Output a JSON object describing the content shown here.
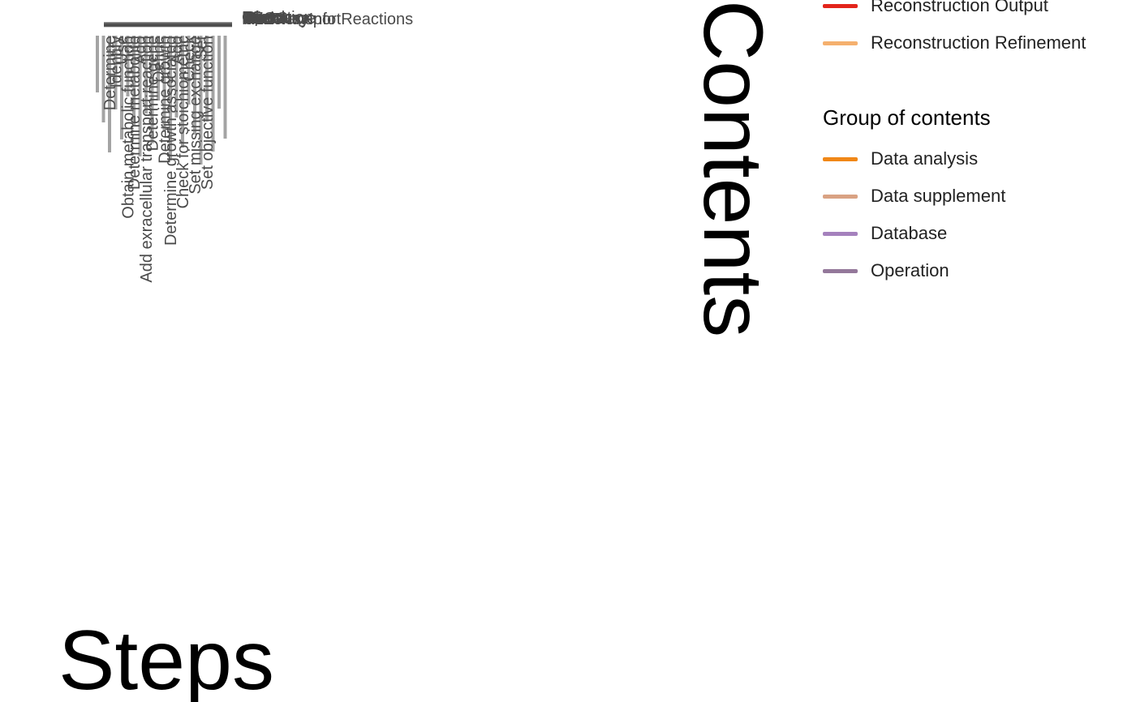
{
  "chart_data": {
    "type": "heatmap",
    "title": "",
    "xlabel": "Steps",
    "ylabel": "Contents",
    "x_tick_labels": [
      "Determine",
      "Identify",
      "Use",
      "Obtain metabolic function",
      "Determine metabolite",
      "Add",
      "Add exracellular transport reaction",
      "Determine gene",
      "Define",
      "Determine growth",
      "Determine growth associated",
      "Add",
      "Check for stoichiometric",
      "Check",
      "Set missing exchange",
      "Set",
      "Set objective function"
    ],
    "y_tick_labels": [
      "P",
      "P",
      "T",
      "K",
      "KEGG",
      "Rxn",
      "Bio",
      "Biomass",
      "Model",
      "Check",
      "Gene",
      "PathwayInfo",
      "Operation",
      "Exchange",
      "addTransportReactions"
    ],
    "x_tick_positions_note": "",
    "legend": {
      "placement": "right",
      "groups": [
        {
          "title": "",
          "items": [
            {
              "label": "Reconstruction Output",
              "color": "#e3241b"
            },
            {
              "label": "Reconstruction Refinement",
              "color": "#f5b06e"
            }
          ]
        },
        {
          "title": "Group of contents",
          "items": [
            {
              "label": "Data analysis",
              "color": "#f08717"
            },
            {
              "label": "Data supplement",
              "color": "#d9a283"
            },
            {
              "label": "Database",
              "color": "#a581bd"
            },
            {
              "label": "Operation",
              "color": "#94789a"
            }
          ]
        }
      ]
    },
    "grid": false
  }
}
